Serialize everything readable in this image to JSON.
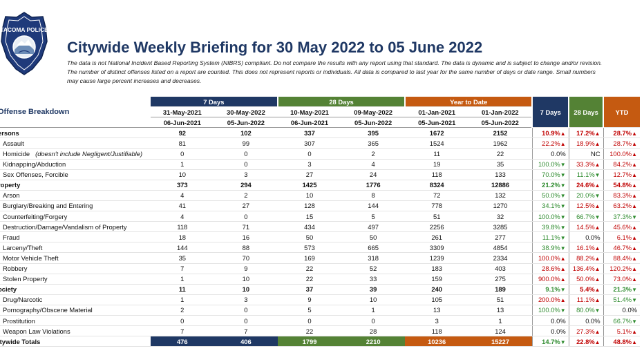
{
  "badge": {
    "text": "TACOMA POLICE"
  },
  "title": "Citywide Weekly Briefing for 30 May 2022 to 05 June 2022",
  "disclaimer": [
    "The data is not National Incident Based Reporting System (NIBRS) compliant.  Do not compare the results with any report using that standard.  The data is dynamic and is subject to change and/or revision.",
    "The number of distinct offenses listed on a report are counted.  This does not represent reports or individuals.  All data is compared to last year for the same number of days or date range.  Small numbers",
    "may cause large percent increases and decreases."
  ],
  "table": {
    "offense_header": "Offense Breakdown",
    "groups": {
      "d7": "7 Days",
      "d28": "28 Days",
      "ytd": "Year to Date"
    },
    "pct_headers": {
      "d7": "7 Days",
      "d28": "28 Days",
      "ytd": "YTD"
    },
    "date_from": [
      "31-May-2021",
      "30-May-2022",
      "10-May-2021",
      "09-May-2022",
      "01-Jan-2021",
      "01-Jan-2022"
    ],
    "date_to": [
      "06-Jun-2021",
      "05-Jun-2022",
      "06-Jun-2021",
      "05-Jun-2022",
      "05-Jun-2021",
      "05-Jun-2022"
    ],
    "rows": [
      {
        "type": "cat",
        "name": "ersons",
        "v": [
          "92",
          "102",
          "337",
          "395",
          "1672",
          "2152"
        ],
        "p": [
          [
            "10.9%",
            "up"
          ],
          [
            "17.2%",
            "up"
          ],
          [
            "28.7%",
            "up"
          ]
        ]
      },
      {
        "type": "item",
        "name": "Assault",
        "v": [
          "81",
          "99",
          "307",
          "365",
          "1524",
          "1962"
        ],
        "p": [
          [
            "22.2%",
            "up"
          ],
          [
            "18.9%",
            "up"
          ],
          [
            "28.7%",
            "up"
          ]
        ]
      },
      {
        "type": "item",
        "name": "Homicide",
        "note": "(doesn't include Negligent/Justifiable)",
        "v": [
          "0",
          "0",
          "0",
          "2",
          "11",
          "22"
        ],
        "p": [
          [
            "0.0%",
            ""
          ],
          [
            "NC",
            ""
          ],
          [
            "100.0%",
            "up"
          ]
        ]
      },
      {
        "type": "item",
        "name": "Kidnapping/Abduction",
        "v": [
          "1",
          "0",
          "3",
          "4",
          "19",
          "35"
        ],
        "p": [
          [
            "100.0%",
            "down"
          ],
          [
            "33.3%",
            "up"
          ],
          [
            "84.2%",
            "up"
          ]
        ]
      },
      {
        "type": "item",
        "name": "Sex Offenses, Forcible",
        "v": [
          "10",
          "3",
          "27",
          "24",
          "118",
          "133"
        ],
        "p": [
          [
            "70.0%",
            "down"
          ],
          [
            "11.1%",
            "down"
          ],
          [
            "12.7%",
            "up"
          ]
        ]
      },
      {
        "type": "cat",
        "name": "roperty",
        "v": [
          "373",
          "294",
          "1425",
          "1776",
          "8324",
          "12886"
        ],
        "p": [
          [
            "21.2%",
            "down"
          ],
          [
            "24.6%",
            "up"
          ],
          [
            "54.8%",
            "up"
          ]
        ]
      },
      {
        "type": "item",
        "name": "Arson",
        "v": [
          "4",
          "2",
          "10",
          "8",
          "72",
          "132"
        ],
        "p": [
          [
            "50.0%",
            "down"
          ],
          [
            "20.0%",
            "down"
          ],
          [
            "83.3%",
            "up"
          ]
        ]
      },
      {
        "type": "item",
        "name": "Burglary/Breaking and Entering",
        "v": [
          "41",
          "27",
          "128",
          "144",
          "778",
          "1270"
        ],
        "p": [
          [
            "34.1%",
            "down"
          ],
          [
            "12.5%",
            "up"
          ],
          [
            "63.2%",
            "up"
          ]
        ]
      },
      {
        "type": "item",
        "name": "Counterfeiting/Forgery",
        "v": [
          "4",
          "0",
          "15",
          "5",
          "51",
          "32"
        ],
        "p": [
          [
            "100.0%",
            "down"
          ],
          [
            "66.7%",
            "down"
          ],
          [
            "37.3%",
            "down"
          ]
        ]
      },
      {
        "type": "item",
        "name": "Destruction/Damage/Vandalism of Property",
        "v": [
          "118",
          "71",
          "434",
          "497",
          "2256",
          "3285"
        ],
        "p": [
          [
            "39.8%",
            "down"
          ],
          [
            "14.5%",
            "up"
          ],
          [
            "45.6%",
            "up"
          ]
        ]
      },
      {
        "type": "item",
        "name": "Fraud",
        "v": [
          "18",
          "16",
          "50",
          "50",
          "261",
          "277"
        ],
        "p": [
          [
            "11.1%",
            "down"
          ],
          [
            "0.0%",
            ""
          ],
          [
            "6.1%",
            "up"
          ]
        ]
      },
      {
        "type": "item",
        "name": "Larceny/Theft",
        "v": [
          "144",
          "88",
          "573",
          "665",
          "3309",
          "4854"
        ],
        "p": [
          [
            "38.9%",
            "down"
          ],
          [
            "16.1%",
            "up"
          ],
          [
            "46.7%",
            "up"
          ]
        ]
      },
      {
        "type": "item",
        "name": "Motor Vehicle Theft",
        "v": [
          "35",
          "70",
          "169",
          "318",
          "1239",
          "2334"
        ],
        "p": [
          [
            "100.0%",
            "up"
          ],
          [
            "88.2%",
            "up"
          ],
          [
            "88.4%",
            "up"
          ]
        ]
      },
      {
        "type": "item",
        "name": "Robbery",
        "v": [
          "7",
          "9",
          "22",
          "52",
          "183",
          "403"
        ],
        "p": [
          [
            "28.6%",
            "up"
          ],
          [
            "136.4%",
            "up"
          ],
          [
            "120.2%",
            "up"
          ]
        ]
      },
      {
        "type": "item",
        "name": "Stolen Property",
        "v": [
          "1",
          "10",
          "22",
          "33",
          "159",
          "275"
        ],
        "p": [
          [
            "900.0%",
            "up"
          ],
          [
            "50.0%",
            "up"
          ],
          [
            "73.0%",
            "up"
          ]
        ]
      },
      {
        "type": "cat",
        "name": "ociety",
        "v": [
          "11",
          "10",
          "37",
          "39",
          "240",
          "189"
        ],
        "p": [
          [
            "9.1%",
            "down"
          ],
          [
            "5.4%",
            "up"
          ],
          [
            "21.3%",
            "down"
          ]
        ]
      },
      {
        "type": "item",
        "name": "Drug/Narcotic",
        "v": [
          "1",
          "3",
          "9",
          "10",
          "105",
          "51"
        ],
        "p": [
          [
            "200.0%",
            "up"
          ],
          [
            "11.1%",
            "up"
          ],
          [
            "51.4%",
            "down"
          ]
        ]
      },
      {
        "type": "item",
        "name": "Pornography/Obscene Material",
        "v": [
          "2",
          "0",
          "5",
          "1",
          "13",
          "13"
        ],
        "p": [
          [
            "100.0%",
            "down"
          ],
          [
            "80.0%",
            "down"
          ],
          [
            "0.0%",
            ""
          ]
        ]
      },
      {
        "type": "item",
        "name": "Prostitution",
        "v": [
          "0",
          "0",
          "0",
          "0",
          "3",
          "1"
        ],
        "p": [
          [
            "0.0%",
            ""
          ],
          [
            "0.0%",
            ""
          ],
          [
            "66.7%",
            "down"
          ]
        ]
      },
      {
        "type": "item",
        "name": "Weapon Law Violations",
        "v": [
          "7",
          "7",
          "22",
          "28",
          "118",
          "124"
        ],
        "p": [
          [
            "0.0%",
            ""
          ],
          [
            "27.3%",
            "up"
          ],
          [
            "5.1%",
            "up"
          ]
        ]
      }
    ],
    "totals": {
      "name": "itywide Totals",
      "v": [
        "476",
        "406",
        "1799",
        "2210",
        "10236",
        "15227"
      ],
      "p": [
        [
          "14.7%",
          "down"
        ],
        [
          "22.8%",
          "up"
        ],
        [
          "48.8%",
          "up"
        ]
      ]
    }
  }
}
